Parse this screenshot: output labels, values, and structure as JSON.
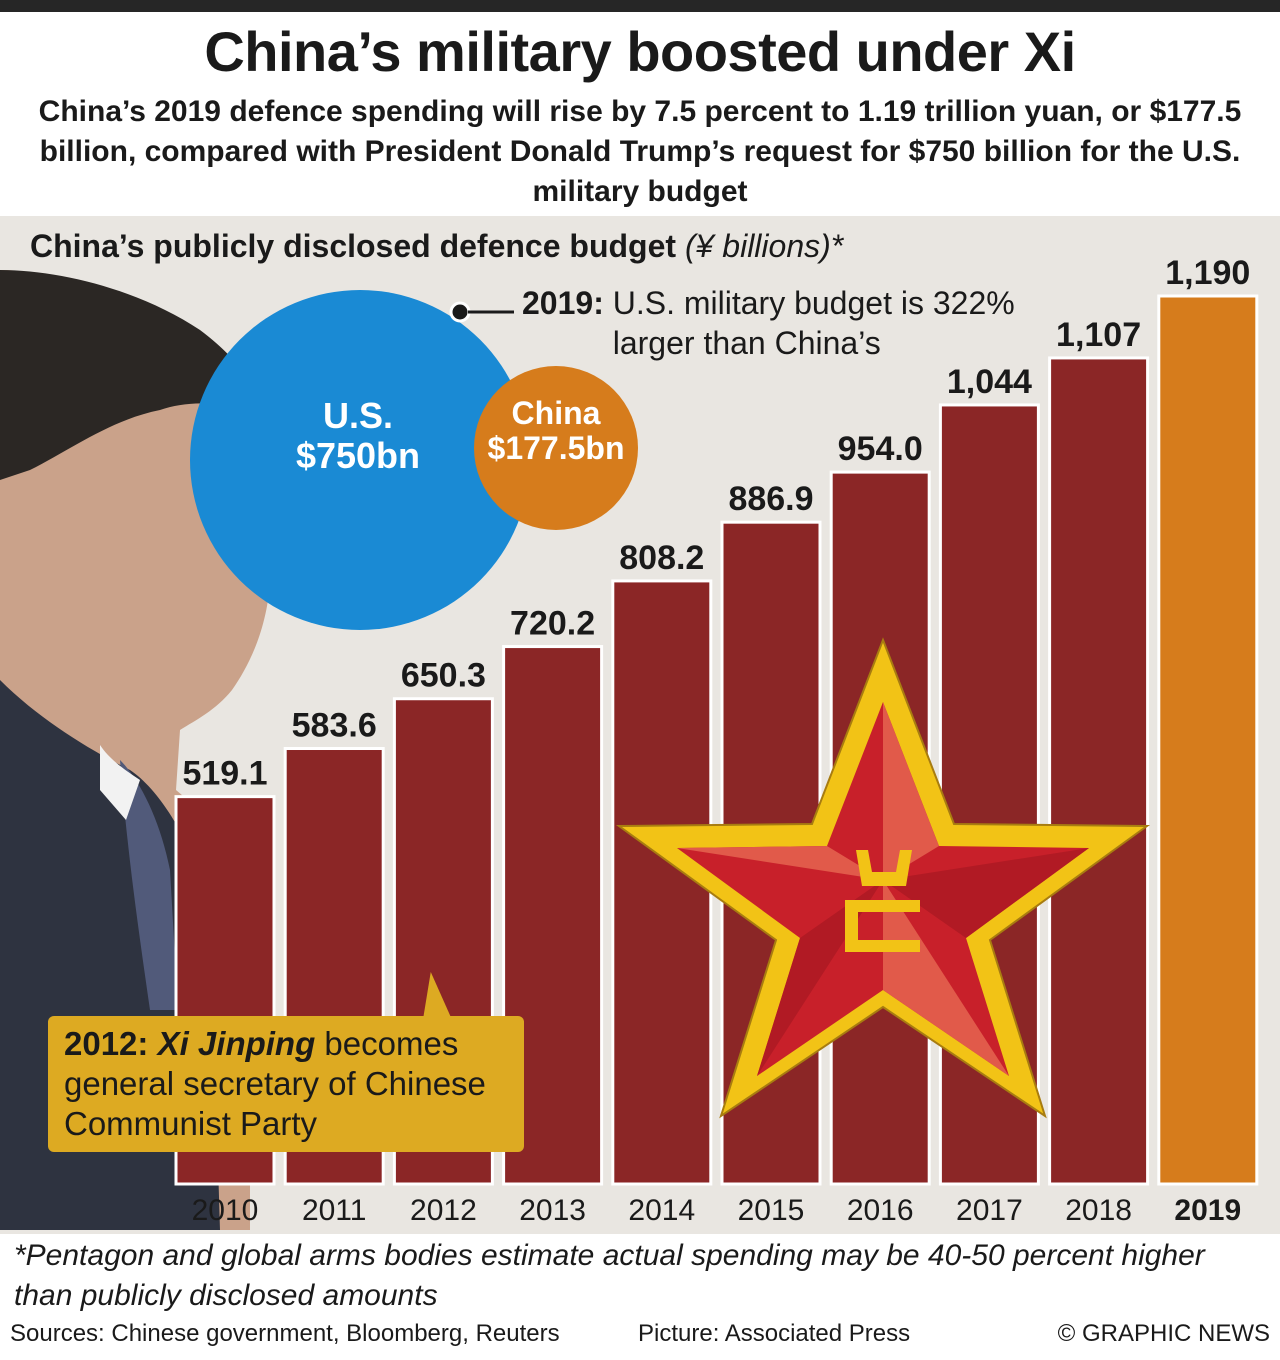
{
  "title": "China’s military boosted under Xi",
  "subtitle": "China’s 2019 defence spending will rise by 7.5 percent to 1.19 trillion yuan, or $177.5 billion, compared with President Donald Trump’s request for $750 billion for the U.S. military budget",
  "chart_heading": {
    "text": "China’s publicly disclosed defence budget",
    "unit": "(¥ billions)*"
  },
  "comparison": {
    "note_bold": "2019:",
    "note_text": "U.S. military budget is 322% larger than China’s",
    "us": {
      "name": "U.S.",
      "value_label": "$750bn",
      "value": 750
    },
    "china": {
      "name": "China",
      "value_label": "$177.5bn",
      "value": 177.5
    }
  },
  "callout": {
    "year": "2012:",
    "name": "Xi Jinping",
    "text_after_name": "becomes",
    "text_rest": "general secretary of Chinese Communist Party"
  },
  "chart_data": {
    "type": "bar",
    "categories": [
      "2010",
      "2011",
      "2012",
      "2013",
      "2014",
      "2015",
      "2016",
      "2017",
      "2018",
      "2019"
    ],
    "values": [
      519.1,
      583.6,
      650.3,
      720.2,
      808.2,
      886.9,
      954.0,
      1044,
      1107,
      1190
    ],
    "value_labels": [
      "519.1",
      "583.6",
      "650.3",
      "720.2",
      "808.2",
      "886.9",
      "954.0",
      "1,044",
      "1,107",
      "1,190"
    ],
    "highlight_category": "2019",
    "ylim": [
      0,
      1190
    ],
    "colors": {
      "bar": "#8b2626",
      "highlight": "#d67c1c"
    }
  },
  "footnote": "*Pentagon and global arms bodies estimate actual spending may be 40-50 percent higher than publicly disclosed amounts",
  "sources": "Sources: Chinese government, Bloomberg, Reuters",
  "picture_credit": "Picture: Associated Press",
  "copyright": "© GRAPHIC NEWS",
  "colors": {
    "background": "#e9e6e1",
    "us_circle": "#1a8ad4",
    "china_circle": "#d67c1c",
    "star_gold": "#f2c316",
    "star_red": "#c8202a",
    "callout": "#ddaa22"
  }
}
